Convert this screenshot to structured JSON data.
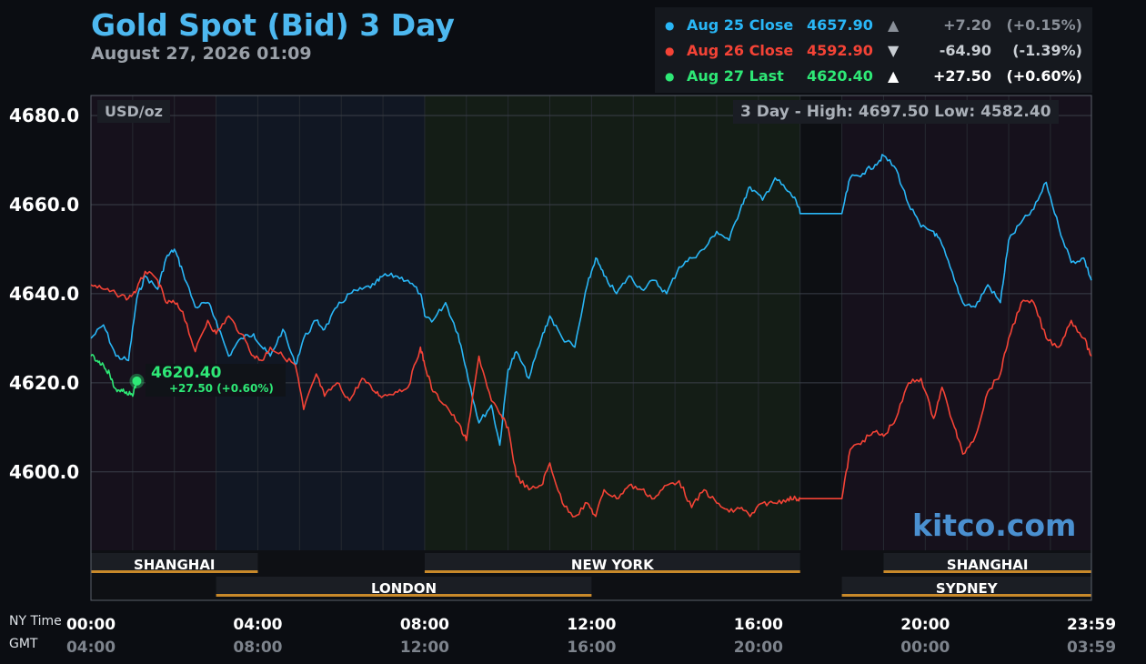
{
  "title": "Gold Spot (Bid) 3 Day",
  "subtitle": "August 27, 2026 01:09",
  "legend": [
    {
      "label": "Aug 25 Close",
      "value": "4657.90",
      "arrow": "▲",
      "change": "+7.20",
      "pct": "(+0.15%)",
      "color": "#29b6f6",
      "dim": "#8a9099"
    },
    {
      "label": "Aug 26 Close",
      "value": "4592.90",
      "arrow": "▼",
      "change": "-64.90",
      "pct": "(-1.39%)",
      "color": "#f44336",
      "dim": "#c9ced4"
    },
    {
      "label": "Aug 27 Last",
      "value": "4620.40",
      "arrow": "▲",
      "change": "+27.50",
      "pct": "(+0.60%)",
      "color": "#2ee876",
      "dim": "#ffffff"
    }
  ],
  "unit_label": "USD/oz",
  "high_low": "3 Day - High: 4697.50  Low: 4582.40",
  "last_marker": {
    "value": "4620.40",
    "change": "+27.50 (+0.60%)"
  },
  "brand": "kitco.com",
  "axis_names": {
    "ny": "NY Time",
    "gmt": "GMT"
  },
  "sessions": [
    {
      "name": "SHANGHAI",
      "start": 0,
      "end": 4,
      "row": 1
    },
    {
      "name": "NEW YORK",
      "start": 8,
      "end": 17,
      "row": 1
    },
    {
      "name": "SHANGHAI",
      "start": 19,
      "end": 23.983,
      "row": 1
    },
    {
      "name": "LONDON",
      "start": 3,
      "end": 12,
      "row": 2
    },
    {
      "name": "SYDNEY",
      "start": 18,
      "end": 23.983,
      "row": 2
    }
  ],
  "colors": {
    "aug25": "#29b6f6",
    "aug26": "#f44336",
    "aug27": "#2ee876",
    "session_bar": "#c8892a",
    "grid": "#3a3f48"
  },
  "chart_data": {
    "type": "line",
    "title": "Gold Spot (Bid) 3 Day",
    "ylabel": "USD/oz",
    "x_unit": "hours (NY Time)",
    "xlim": [
      0,
      23.983
    ],
    "ylim": [
      4582.4,
      4684.5
    ],
    "y_ticks": [
      4680.0,
      4660.0,
      4640.0,
      4620.0,
      4600.0
    ],
    "y_tick_labels": [
      "4680.0",
      "4660.0",
      "4640.0",
      "4620.0",
      "4600.0"
    ],
    "x_ticks": [
      0,
      4,
      8,
      12,
      16,
      20,
      23.983
    ],
    "x_tick_labels_ny": [
      "00:00",
      "04:00",
      "08:00",
      "12:00",
      "16:00",
      "20:00",
      "23:59"
    ],
    "x_tick_labels_gmt": [
      "04:00",
      "08:00",
      "12:00",
      "16:00",
      "20:00",
      "00:00",
      "03:59"
    ],
    "grid": true,
    "series": [
      {
        "name": "Aug 25 Close",
        "color": "#29b6f6",
        "x": [
          0,
          0.3,
          0.6,
          0.9,
          1.1,
          1.3,
          1.6,
          1.8,
          2.0,
          2.2,
          2.5,
          2.8,
          3.0,
          3.3,
          3.6,
          3.9,
          4.1,
          4.3,
          4.6,
          4.9,
          5.1,
          5.4,
          5.6,
          5.9,
          6.2,
          6.5,
          6.8,
          7.0,
          7.3,
          7.6,
          7.9,
          8.0,
          8.2,
          8.5,
          8.8,
          9.0,
          9.3,
          9.6,
          9.8,
          10.0,
          10.2,
          10.5,
          10.8,
          11.0,
          11.3,
          11.6,
          11.9,
          12.1,
          12.3,
          12.6,
          12.9,
          13.2,
          13.5,
          13.8,
          14.1,
          14.4,
          14.7,
          15.0,
          15.3,
          15.6,
          15.8,
          16.1,
          16.4,
          16.7,
          16.9,
          17.0,
          18.0,
          18.2,
          18.5,
          18.8,
          19.0,
          19.3,
          19.6,
          19.9,
          20.2,
          20.4,
          20.7,
          20.9,
          21.2,
          21.5,
          21.8,
          22.0,
          22.3,
          22.6,
          22.9,
          23.2,
          23.5,
          23.8,
          23.983
        ],
        "y": [
          4630,
          4633,
          4626,
          4625,
          4639,
          4644,
          4641,
          4648,
          4650,
          4645,
          4637,
          4638,
          4634,
          4626,
          4630,
          4631,
          4628,
          4626,
          4632,
          4624,
          4630,
          4634,
          4632,
          4637,
          4640,
          4641,
          4642,
          4644,
          4644,
          4643,
          4640,
          4635,
          4634,
          4638,
          4631,
          4623,
          4611,
          4615,
          4606,
          4623,
          4627,
          4621,
          4630,
          4635,
          4630,
          4628,
          4642,
          4648,
          4644,
          4640,
          4644,
          4641,
          4643,
          4640,
          4646,
          4648,
          4650,
          4654,
          4652,
          4660,
          4664,
          4661,
          4666,
          4663,
          4661,
          4658,
          4658,
          4666,
          4667,
          4669,
          4671,
          4668,
          4660,
          4655,
          4654,
          4651,
          4643,
          4638,
          4637,
          4642,
          4638,
          4652,
          4656,
          4659,
          4665,
          4655,
          4647,
          4648,
          4643
        ]
      },
      {
        "name": "Aug 26 Close",
        "color": "#f44336",
        "x": [
          0,
          0.3,
          0.6,
          0.9,
          1.1,
          1.3,
          1.6,
          1.8,
          2.0,
          2.2,
          2.5,
          2.8,
          3.0,
          3.3,
          3.6,
          3.9,
          4.1,
          4.3,
          4.6,
          4.9,
          5.1,
          5.4,
          5.6,
          5.9,
          6.2,
          6.5,
          6.8,
          7.0,
          7.3,
          7.6,
          7.9,
          8.0,
          8.2,
          8.5,
          8.8,
          9.0,
          9.3,
          9.6,
          9.8,
          10.0,
          10.2,
          10.5,
          10.8,
          11.0,
          11.3,
          11.6,
          11.9,
          12.1,
          12.3,
          12.6,
          12.9,
          13.2,
          13.5,
          13.8,
          14.1,
          14.4,
          14.7,
          15.0,
          15.3,
          15.6,
          15.8,
          16.1,
          16.4,
          16.7,
          16.9,
          17.0,
          18.0,
          18.2,
          18.5,
          18.8,
          19.0,
          19.3,
          19.6,
          19.9,
          20.2,
          20.4,
          20.7,
          20.9,
          21.2,
          21.5,
          21.8,
          22.0,
          22.3,
          22.6,
          22.9,
          23.2,
          23.5,
          23.8,
          23.983
        ],
        "y": [
          4642,
          4641,
          4640,
          4639,
          4641,
          4645,
          4643,
          4638,
          4638,
          4636,
          4627,
          4634,
          4631,
          4635,
          4631,
          4626,
          4625,
          4628,
          4626,
          4624,
          4614,
          4622,
          4617,
          4620,
          4616,
          4621,
          4618,
          4617,
          4618,
          4619,
          4628,
          4624,
          4618,
          4615,
          4611,
          4607,
          4626,
          4616,
          4613,
          4610,
          4599,
          4596,
          4597,
          4602,
          4593,
          4590,
          4593,
          4590,
          4596,
          4594,
          4597,
          4596,
          4594,
          4597,
          4598,
          4592,
          4596,
          4593,
          4591,
          4592,
          4590,
          4593,
          4593,
          4594,
          4594,
          4594,
          4594,
          4605,
          4607,
          4609,
          4608,
          4612,
          4620,
          4621,
          4612,
          4619,
          4610,
          4604,
          4608,
          4618,
          4622,
          4630,
          4638,
          4638,
          4630,
          4628,
          4634,
          4630,
          4626
        ]
      },
      {
        "name": "Aug 27 Last",
        "color": "#2ee876",
        "x": [
          0,
          0.15,
          0.3,
          0.45,
          0.55,
          0.7,
          0.85,
          1.0,
          1.1
        ],
        "y": [
          4626,
          4625,
          4624,
          4622,
          4619,
          4618,
          4618,
          4617,
          4620.4
        ]
      }
    ]
  }
}
